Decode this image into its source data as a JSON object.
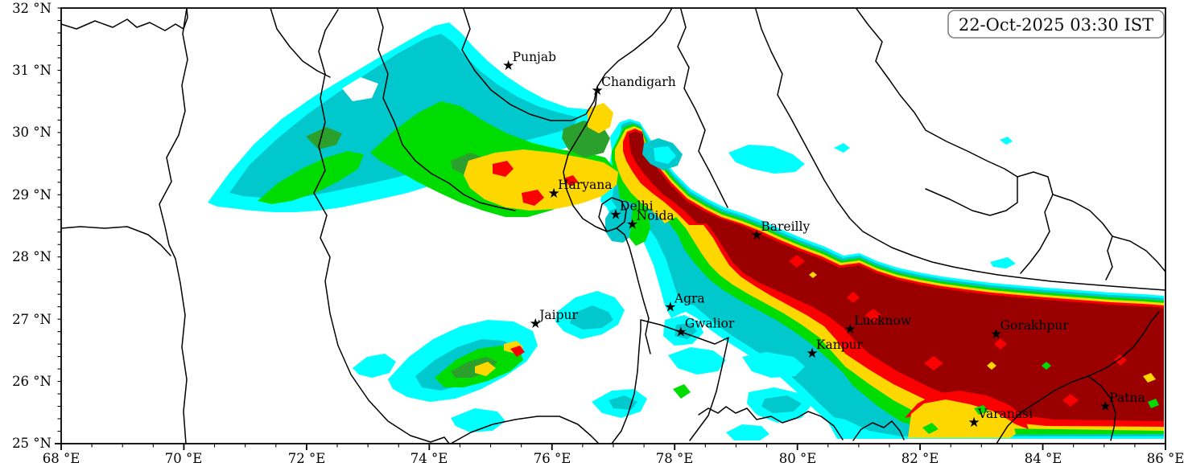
{
  "header": {
    "timestamp": "22-Oct-2025 03:30 IST"
  },
  "axes": {
    "x": {
      "unit": "°E",
      "range": [
        68,
        86
      ],
      "major_step": 2,
      "minor_step": 0.5,
      "ticks": [
        {
          "value": 68,
          "label": "68 °E"
        },
        {
          "value": 70,
          "label": "70 °E"
        },
        {
          "value": 72,
          "label": "72 °E"
        },
        {
          "value": 74,
          "label": "74 °E"
        },
        {
          "value": 76,
          "label": "76 °E"
        },
        {
          "value": 78,
          "label": "78 °E"
        },
        {
          "value": 80,
          "label": "80 °E"
        },
        {
          "value": 82,
          "label": "82 °E"
        },
        {
          "value": 84,
          "label": "84 °E"
        },
        {
          "value": 86,
          "label": "86 °E"
        }
      ]
    },
    "y": {
      "unit": "°N",
      "range": [
        25,
        32
      ],
      "major_step": 1,
      "minor_step": 0.2,
      "ticks": [
        {
          "value": 32,
          "label": "32 °N"
        },
        {
          "value": 31,
          "label": "31 °N"
        },
        {
          "value": 30,
          "label": "30 °N"
        },
        {
          "value": 29,
          "label": "29 °N"
        },
        {
          "value": 28,
          "label": "28 °N"
        },
        {
          "value": 27,
          "label": "27 °N"
        },
        {
          "value": 26,
          "label": "26 °N"
        },
        {
          "value": 25,
          "label": "25 °N"
        }
      ]
    }
  },
  "cities": [
    {
      "name": "Punjab",
      "lon": 75.29,
      "lat": 31.08
    },
    {
      "name": "Chandigarh",
      "lon": 76.74,
      "lat": 30.68
    },
    {
      "name": "Haryana",
      "lon": 76.03,
      "lat": 29.03
    },
    {
      "name": "Delhi",
      "lon": 77.04,
      "lat": 28.69
    },
    {
      "name": "Noida",
      "lon": 77.31,
      "lat": 28.53
    },
    {
      "name": "Jaipur",
      "lon": 75.73,
      "lat": 26.94
    },
    {
      "name": "Agra",
      "lon": 77.93,
      "lat": 27.2
    },
    {
      "name": "Gwalior",
      "lon": 78.1,
      "lat": 26.8
    },
    {
      "name": "Bareilly",
      "lon": 79.34,
      "lat": 28.36
    },
    {
      "name": "Lucknow",
      "lon": 80.86,
      "lat": 26.85
    },
    {
      "name": "Kanpur",
      "lon": 80.24,
      "lat": 26.46
    },
    {
      "name": "Gorakhpur",
      "lon": 83.24,
      "lat": 26.77
    },
    {
      "name": "Varanasi",
      "lon": 82.88,
      "lat": 25.35
    },
    {
      "name": "Patna",
      "lon": 85.02,
      "lat": 25.61
    }
  ],
  "palette": {
    "levels": [
      {
        "css": "cyan",
        "name": "intensity-1-lowest",
        "color": "#00FFFF"
      },
      {
        "css": "teal",
        "name": "intensity-2",
        "color": "#00C8CC"
      },
      {
        "css": "green",
        "name": "intensity-3",
        "color": "#00DC00"
      },
      {
        "css": "dgreen",
        "name": "intensity-4",
        "color": "#2CA02C"
      },
      {
        "css": "yellow",
        "name": "intensity-5",
        "color": "#FFD700"
      },
      {
        "css": "red",
        "name": "intensity-6",
        "color": "#FA0000"
      },
      {
        "css": "darkred",
        "name": "intensity-7-severe",
        "color": "#9B0000"
      }
    ],
    "border_color": "#000000",
    "marker_color": "#000000",
    "stamp_border": "#808080"
  },
  "icons": {
    "city_marker": "★"
  }
}
